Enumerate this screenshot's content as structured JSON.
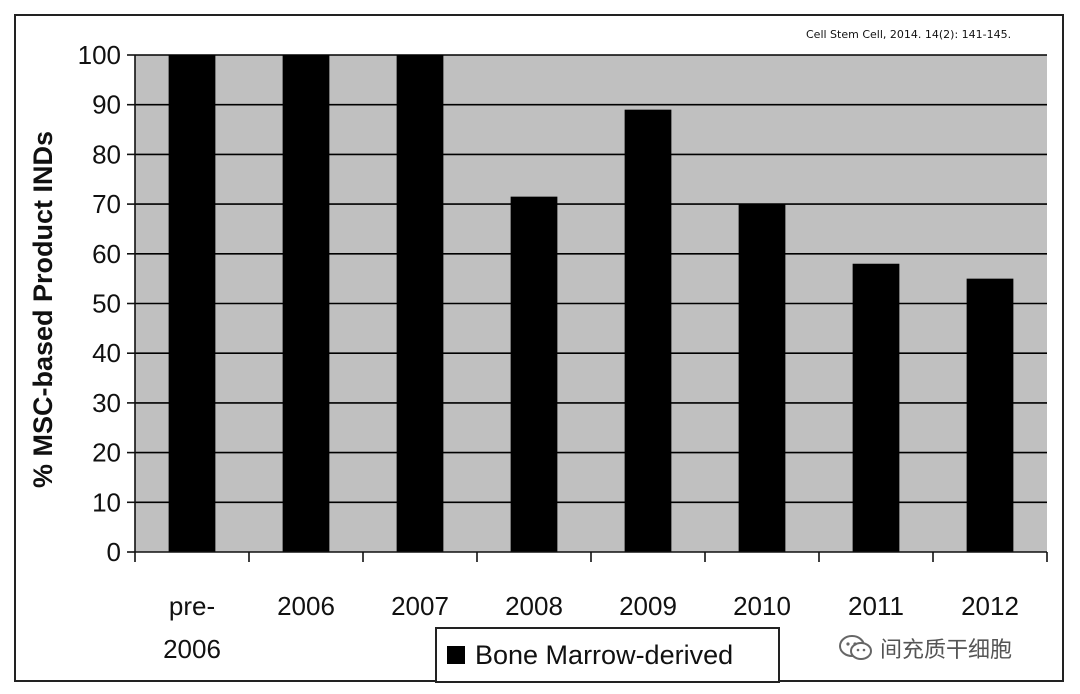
{
  "chart_data": {
    "type": "bar",
    "categories": [
      "pre-\n2006",
      "2006",
      "2007",
      "2008",
      "2009",
      "2010",
      "2011",
      "2012"
    ],
    "series": [
      {
        "name": "Bone Marrow-derived",
        "values": [
          100,
          100,
          100,
          71.5,
          89,
          70,
          58,
          55
        ]
      }
    ],
    "ylabel": "% MSC-based Product INDs",
    "ylim": [
      0,
      100
    ],
    "yticks": [
      0,
      10,
      20,
      30,
      40,
      50,
      60,
      70,
      80,
      90,
      100
    ],
    "grid": true,
    "legend": "bottom-center",
    "colors": {
      "bar": "#000000",
      "plot_bg": "#c0c0c0",
      "grid": "#000000"
    }
  },
  "citation": "Cell Stem Cell, 2014. 14(2): 141-145.",
  "watermark": {
    "icon": "wechat-icon",
    "text": "间充质干细胞"
  }
}
